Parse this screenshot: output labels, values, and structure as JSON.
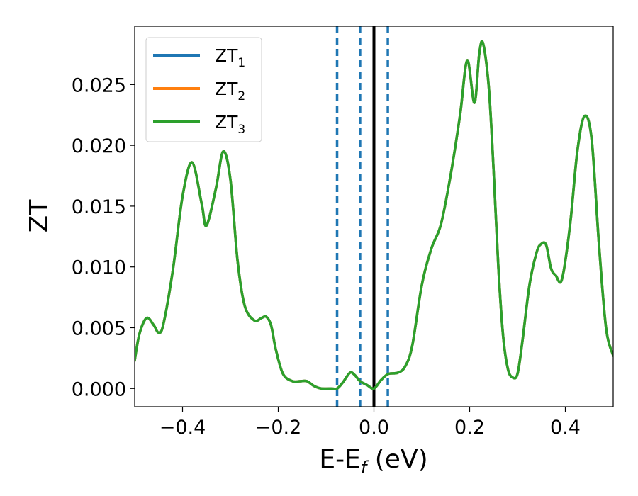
{
  "colors": {
    "zt1": "#1f77b4",
    "zt2": "#ff7f0e",
    "zt3": "#2ca02c",
    "fermi_line": "#000000",
    "dashed_lines": "#1f77b4"
  },
  "chart_data": {
    "type": "line",
    "xlabel_main": "E-E",
    "xlabel_sub": "f",
    "xlabel_tail": " (eV)",
    "ylabel": "ZT",
    "xlim": [
      -0.5,
      0.5
    ],
    "ylim": [
      -0.0015,
      0.0298
    ],
    "xticks": [
      -0.4,
      -0.2,
      0.0,
      0.2,
      0.4
    ],
    "xtick_labels": [
      "−0.4",
      "−0.2",
      "0.0",
      "0.2",
      "0.4"
    ],
    "yticks": [
      0.0,
      0.005,
      0.01,
      0.015,
      0.02,
      0.025
    ],
    "ytick_labels": [
      "0.000",
      "0.005",
      "0.010",
      "0.015",
      "0.020",
      "0.025"
    ],
    "grid": false,
    "legend_position": "upper-left",
    "vertical_lines": [
      {
        "x": -0.077,
        "style": "dashed"
      },
      {
        "x": -0.029,
        "style": "dashed"
      },
      {
        "x": 0.0,
        "style": "solid"
      },
      {
        "x": 0.029,
        "style": "dashed"
      }
    ],
    "series": [
      {
        "name_main": "ZT",
        "name_sub": "1"
      },
      {
        "name_main": "ZT",
        "name_sub": "2"
      },
      {
        "name_main": "ZT",
        "name_sub": "3"
      }
    ],
    "x": [
      -0.5,
      -0.49,
      -0.475,
      -0.46,
      -0.45,
      -0.44,
      -0.42,
      -0.4,
      -0.38,
      -0.36,
      -0.35,
      -0.33,
      -0.315,
      -0.3,
      -0.285,
      -0.27,
      -0.25,
      -0.235,
      -0.225,
      -0.215,
      -0.205,
      -0.19,
      -0.17,
      -0.155,
      -0.14,
      -0.125,
      -0.11,
      -0.09,
      -0.077,
      -0.065,
      -0.05,
      -0.04,
      -0.029,
      -0.015,
      0.0,
      0.015,
      0.03,
      0.05,
      0.065,
      0.08,
      0.1,
      0.12,
      0.14,
      0.16,
      0.18,
      0.195,
      0.21,
      0.22,
      0.228,
      0.24,
      0.25,
      0.26,
      0.27,
      0.28,
      0.29,
      0.3,
      0.31,
      0.325,
      0.34,
      0.35,
      0.36,
      0.37,
      0.38,
      0.393,
      0.41,
      0.425,
      0.44,
      0.455,
      0.47,
      0.485,
      0.5
    ],
    "y": [
      0.0023,
      0.0045,
      0.0058,
      0.0052,
      0.0046,
      0.0053,
      0.0098,
      0.0158,
      0.0186,
      0.0152,
      0.0134,
      0.0165,
      0.0195,
      0.0172,
      0.0105,
      0.0068,
      0.0056,
      0.0058,
      0.0059,
      0.0052,
      0.0032,
      0.0012,
      0.0006,
      0.0006,
      0.0006,
      0.0002,
      0.0,
      0.0,
      0.0,
      0.0005,
      0.0013,
      0.0011,
      0.0006,
      0.0003,
      0.0,
      0.0007,
      0.0012,
      0.0013,
      0.0018,
      0.0035,
      0.0085,
      0.0115,
      0.0135,
      0.0175,
      0.0225,
      0.027,
      0.0235,
      0.0275,
      0.0284,
      0.0248,
      0.018,
      0.01,
      0.0043,
      0.0016,
      0.0009,
      0.0012,
      0.0038,
      0.0085,
      0.0112,
      0.0119,
      0.0118,
      0.0099,
      0.0093,
      0.009,
      0.0135,
      0.0195,
      0.0224,
      0.0205,
      0.012,
      0.005,
      0.0027
    ]
  }
}
